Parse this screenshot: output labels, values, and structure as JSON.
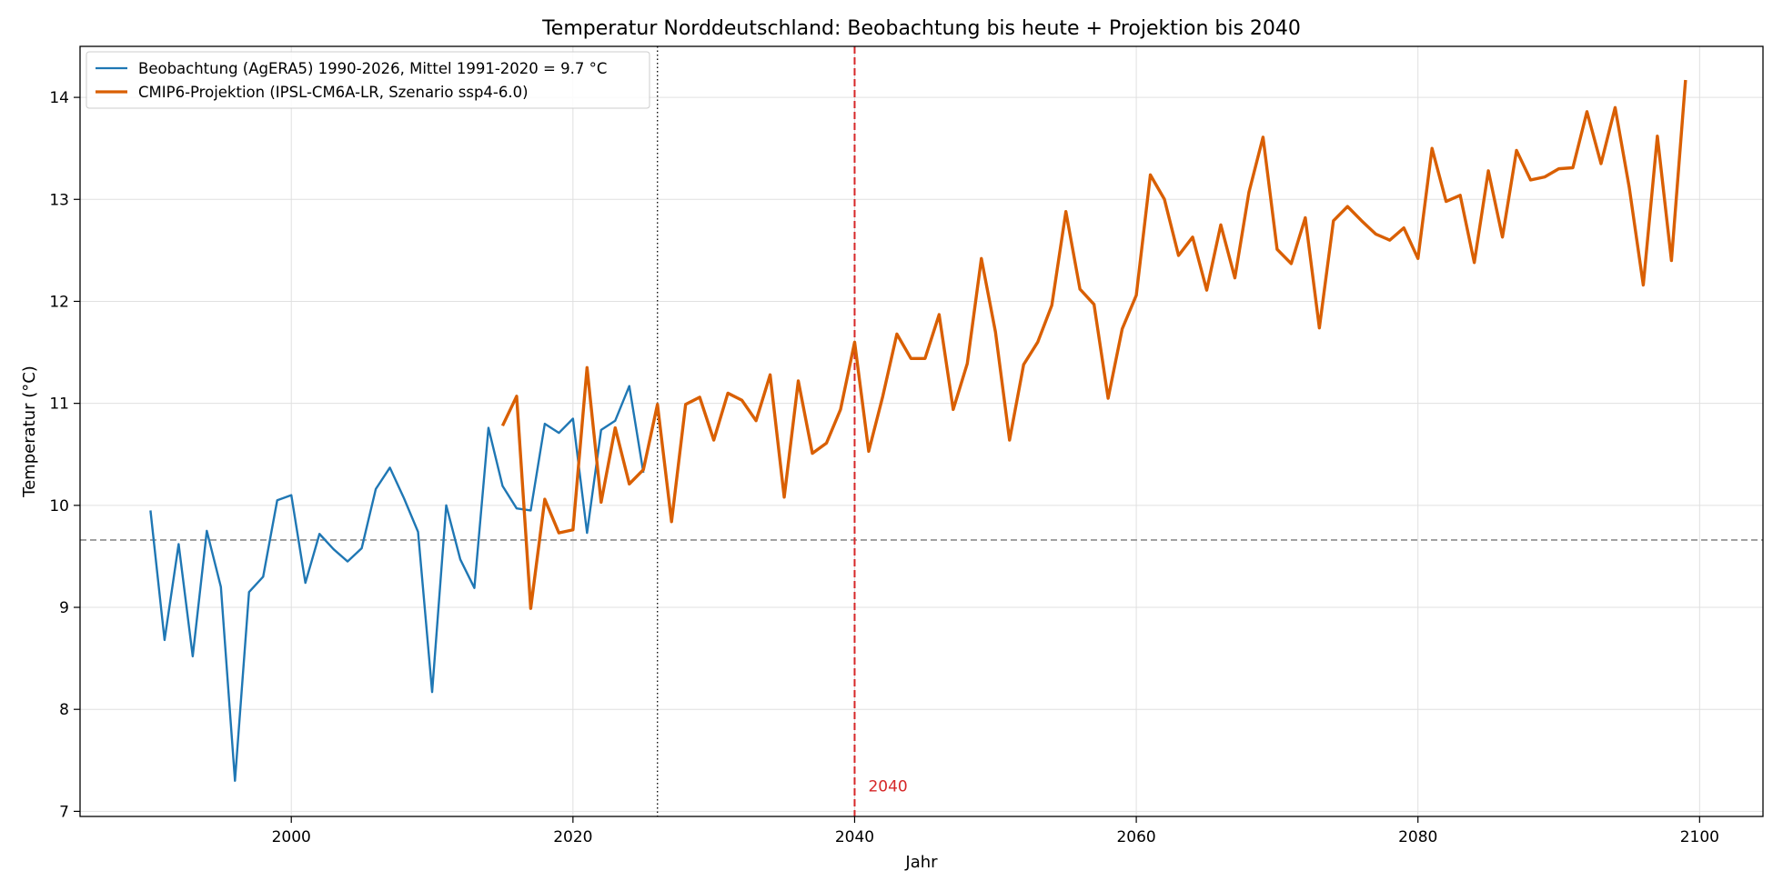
{
  "chart_data": {
    "type": "line",
    "title": "Temperatur Norddeutschland: Beobachtung bis heute + Projektion bis 2040",
    "xlabel": "Jahr",
    "ylabel": "Temperatur (°C)",
    "xlim": [
      1985,
      2104.5
    ],
    "ylim": [
      6.95,
      14.5
    ],
    "x_ticks": [
      2000,
      2020,
      2040,
      2060,
      2080,
      2100
    ],
    "y_ticks": [
      7,
      8,
      9,
      10,
      11,
      12,
      13,
      14
    ],
    "grid": true,
    "legend_position": "top-left",
    "series": [
      {
        "name": "Beobachtung (AgERA5) 1990-2026, Mittel 1991-2020 = 9.7 °C",
        "color": "#1f77b4",
        "x": [
          1990,
          1991,
          1992,
          1993,
          1994,
          1995,
          1996,
          1997,
          1998,
          1999,
          2000,
          2001,
          2002,
          2003,
          2004,
          2005,
          2006,
          2007,
          2008,
          2009,
          2010,
          2011,
          2012,
          2013,
          2014,
          2015,
          2016,
          2017,
          2018,
          2019,
          2020,
          2021,
          2022,
          2023,
          2024,
          2025
        ],
        "values": [
          9.95,
          8.68,
          9.62,
          8.52,
          9.75,
          9.2,
          7.3,
          9.15,
          9.3,
          10.05,
          10.1,
          9.24,
          9.72,
          9.57,
          9.45,
          9.58,
          10.16,
          10.37,
          10.07,
          9.74,
          8.17,
          10.0,
          9.47,
          9.19,
          10.76,
          10.19,
          9.97,
          9.95,
          10.8,
          10.71,
          10.85,
          9.73,
          10.74,
          10.83,
          11.17,
          10.32
        ]
      },
      {
        "name": "CMIP6-Projektion (IPSL-CM6A-LR, Szenario ssp4-6.0)",
        "color": "#d95f02",
        "x": [
          2015,
          2016,
          2017,
          2018,
          2019,
          2020,
          2021,
          2022,
          2023,
          2024,
          2025,
          2026,
          2027,
          2028,
          2029,
          2030,
          2031,
          2032,
          2033,
          2034,
          2035,
          2036,
          2037,
          2038,
          2039,
          2040,
          2041,
          2042,
          2043,
          2044,
          2045,
          2046,
          2047,
          2048,
          2049,
          2050,
          2051,
          2052,
          2053,
          2054,
          2055,
          2056,
          2057,
          2058,
          2059,
          2060,
          2061,
          2062,
          2063,
          2064,
          2065,
          2066,
          2067,
          2068,
          2069,
          2070,
          2071,
          2072,
          2073,
          2074,
          2075,
          2076,
          2077,
          2078,
          2079,
          2080,
          2081,
          2082,
          2083,
          2084,
          2085,
          2086,
          2087,
          2088,
          2089,
          2090,
          2091,
          2092,
          2093,
          2094,
          2095,
          2096,
          2097,
          2098,
          2099
        ],
        "values": [
          10.78,
          11.07,
          8.99,
          10.06,
          9.73,
          9.76,
          11.35,
          10.03,
          10.76,
          10.21,
          10.35,
          10.99,
          9.84,
          10.99,
          11.06,
          10.64,
          11.1,
          11.03,
          10.83,
          11.28,
          10.08,
          11.22,
          10.51,
          10.61,
          10.94,
          11.6,
          10.53,
          11.07,
          11.68,
          11.44,
          11.44,
          11.87,
          10.94,
          11.39,
          12.42,
          11.7,
          10.64,
          11.38,
          11.6,
          11.96,
          12.88,
          12.12,
          11.97,
          11.05,
          11.73,
          12.06,
          13.24,
          13.0,
          12.45,
          12.63,
          12.11,
          12.75,
          12.23,
          13.07,
          13.61,
          12.51,
          12.37,
          12.82,
          11.74,
          12.79,
          12.93,
          12.79,
          12.66,
          12.6,
          12.72,
          12.42,
          13.5,
          12.98,
          13.04,
          12.38,
          13.28,
          12.63,
          13.48,
          13.19,
          13.22,
          13.3,
          13.31,
          13.86,
          13.35,
          13.9,
          13.12,
          12.16,
          13.62,
          12.4,
          14.17
        ]
      }
    ],
    "reference_lines": {
      "mean_line_y": 9.66,
      "today_x": 2026,
      "target_x": 2040,
      "target_label": "2040",
      "target_color": "#d62728"
    }
  }
}
